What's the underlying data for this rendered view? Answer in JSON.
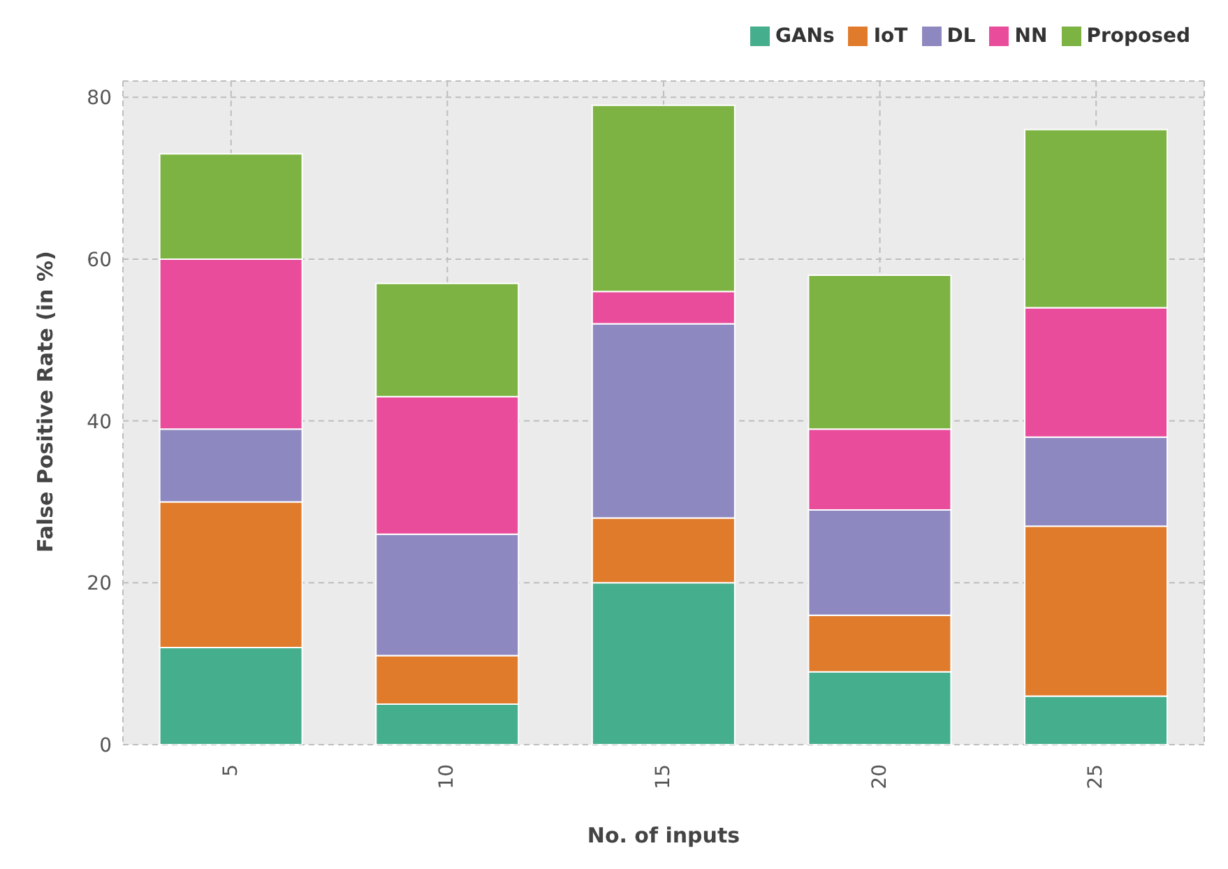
{
  "chart_data": {
    "type": "bar",
    "xlabel": "No. of inputs",
    "ylabel": "False Positive Rate (in %)",
    "categories": [
      "5",
      "10",
      "15",
      "20",
      "25"
    ],
    "series": [
      {
        "name": "GANs",
        "color": "#45ae8c",
        "values": [
          12,
          5,
          20,
          9,
          6
        ]
      },
      {
        "name": "IoT",
        "color": "#e07b2c",
        "values": [
          18,
          6,
          8,
          7,
          21
        ]
      },
      {
        "name": "DL",
        "color": "#8d88c0",
        "values": [
          9,
          15,
          24,
          13,
          11
        ]
      },
      {
        "name": "NN",
        "color": "#ea4c9c",
        "values": [
          21,
          17,
          4,
          10,
          16
        ]
      },
      {
        "name": "Proposed",
        "color": "#7cb342",
        "values": [
          13,
          14,
          23,
          19,
          22
        ]
      }
    ],
    "stacked": true,
    "ylim": [
      0,
      82
    ],
    "yticks": [
      0,
      20,
      40,
      60,
      80
    ],
    "grid": true,
    "legend": "top right"
  }
}
